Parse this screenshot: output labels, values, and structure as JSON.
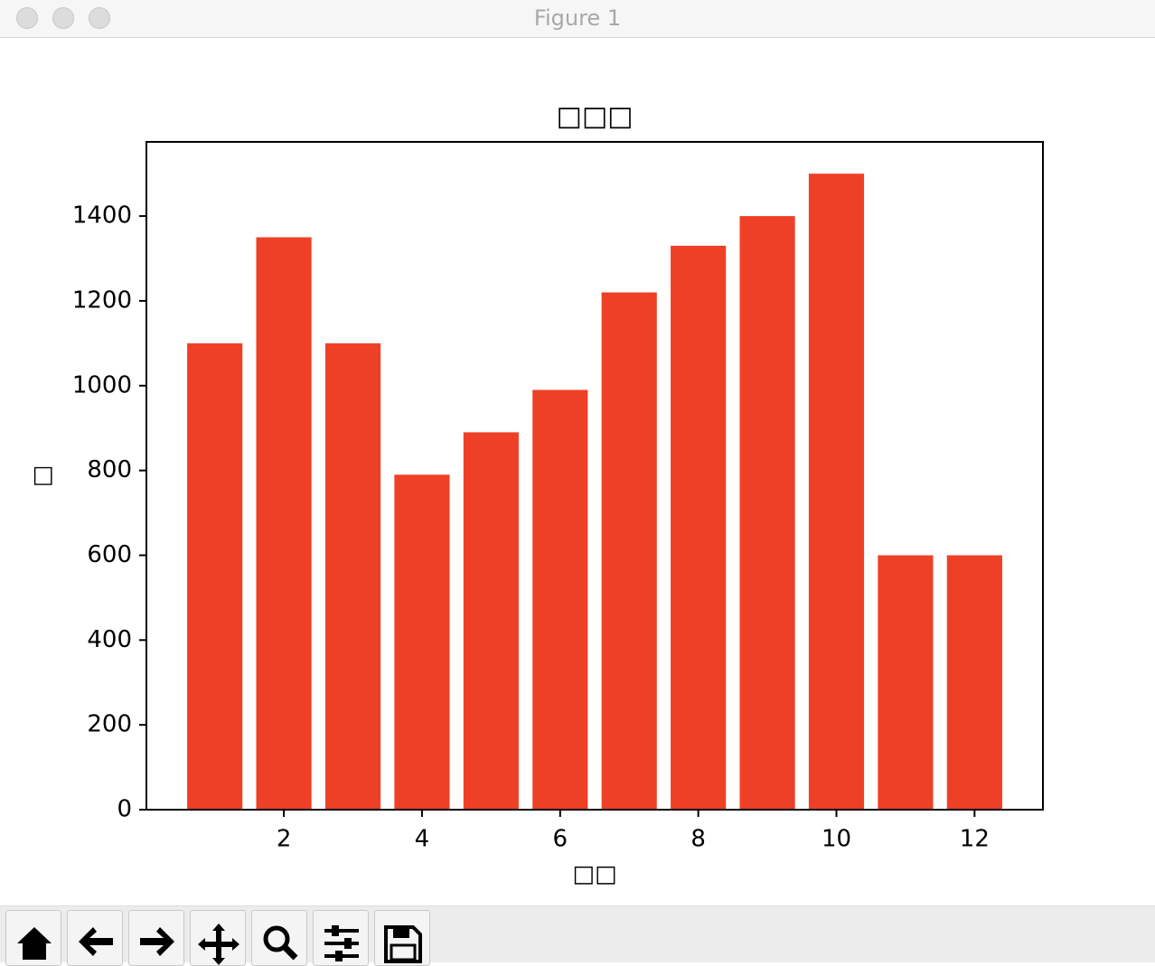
{
  "window": {
    "title": "Figure 1"
  },
  "chart_data": {
    "type": "bar",
    "title": "□□□",
    "x_label": "□□",
    "y_label": "□",
    "x": [
      1,
      2,
      3,
      4,
      5,
      6,
      7,
      8,
      9,
      10,
      11,
      12
    ],
    "values": [
      1100,
      1350,
      1100,
      790,
      890,
      990,
      1220,
      1330,
      1400,
      1500,
      600,
      600
    ],
    "color": "#ee4026",
    "xlim": [
      0.01,
      12.99
    ],
    "xticks": [
      2,
      4,
      6,
      8,
      10,
      12
    ],
    "ylim": [
      0,
      1575
    ],
    "yticks": [
      0,
      200,
      400,
      600,
      800,
      1000,
      1200,
      1400
    ],
    "grid": false
  }
}
